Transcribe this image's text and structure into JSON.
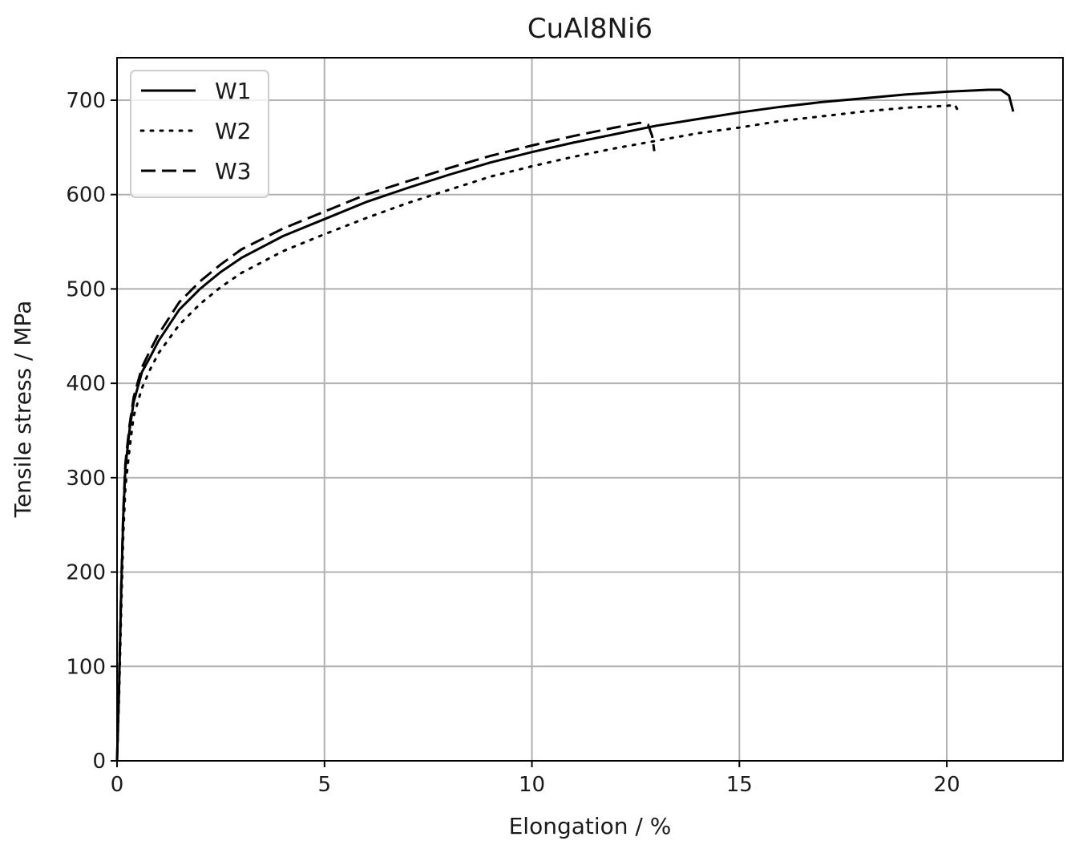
{
  "chart_data": {
    "type": "line",
    "title": "CuAl8Ni6",
    "xlabel": "Elongation / %",
    "ylabel": "Tensile stress / MPa",
    "xlim": [
      0,
      22.8
    ],
    "ylim": [
      0,
      745
    ],
    "xticks": [
      0,
      5,
      10,
      15,
      20
    ],
    "yticks": [
      0,
      100,
      200,
      300,
      400,
      500,
      600,
      700
    ],
    "grid": true,
    "legend_position": "top-left",
    "series": [
      {
        "name": "W1",
        "linestyle": "solid",
        "color": "#000000",
        "points": [
          [
            0,
            0
          ],
          [
            0.05,
            80
          ],
          [
            0.1,
            180
          ],
          [
            0.15,
            260
          ],
          [
            0.2,
            310
          ],
          [
            0.3,
            350
          ],
          [
            0.4,
            380
          ],
          [
            0.6,
            412
          ],
          [
            0.8,
            428
          ],
          [
            1.0,
            445
          ],
          [
            1.5,
            478
          ],
          [
            2.0,
            500
          ],
          [
            2.5,
            518
          ],
          [
            3.0,
            533
          ],
          [
            4.0,
            556
          ],
          [
            5.0,
            574
          ],
          [
            6.0,
            592
          ],
          [
            7.0,
            607
          ],
          [
            8.0,
            621
          ],
          [
            9.0,
            634
          ],
          [
            10.0,
            645
          ],
          [
            11.0,
            655
          ],
          [
            12.0,
            664
          ],
          [
            13.0,
            673
          ],
          [
            14.0,
            680
          ],
          [
            15.0,
            687
          ],
          [
            16.0,
            693
          ],
          [
            17.0,
            698
          ],
          [
            18.0,
            702
          ],
          [
            19.0,
            706
          ],
          [
            20.0,
            709
          ],
          [
            21.0,
            711
          ],
          [
            21.3,
            711
          ],
          [
            21.5,
            705
          ],
          [
            21.6,
            688
          ]
        ]
      },
      {
        "name": "W2",
        "linestyle": "dotted",
        "color": "#000000",
        "points": [
          [
            0,
            0
          ],
          [
            0.05,
            70
          ],
          [
            0.1,
            160
          ],
          [
            0.15,
            240
          ],
          [
            0.2,
            290
          ],
          [
            0.3,
            330
          ],
          [
            0.4,
            365
          ],
          [
            0.6,
            395
          ],
          [
            0.8,
            415
          ],
          [
            1.0,
            432
          ],
          [
            1.5,
            462
          ],
          [
            2.0,
            484
          ],
          [
            2.5,
            502
          ],
          [
            3.0,
            517
          ],
          [
            4.0,
            540
          ],
          [
            5.0,
            558
          ],
          [
            6.0,
            575
          ],
          [
            7.0,
            591
          ],
          [
            8.0,
            605
          ],
          [
            9.0,
            619
          ],
          [
            10.0,
            630
          ],
          [
            11.0,
            640
          ],
          [
            12.0,
            649
          ],
          [
            13.0,
            657
          ],
          [
            14.0,
            665
          ],
          [
            15.0,
            671
          ],
          [
            16.0,
            678
          ],
          [
            17.0,
            683
          ],
          [
            18.0,
            688
          ],
          [
            19.0,
            692
          ],
          [
            20.0,
            694
          ],
          [
            20.2,
            695
          ],
          [
            20.3,
            686
          ]
        ]
      },
      {
        "name": "W3",
        "linestyle": "dashed",
        "color": "#000000",
        "points": [
          [
            0,
            0
          ],
          [
            0.05,
            85
          ],
          [
            0.1,
            185
          ],
          [
            0.15,
            265
          ],
          [
            0.2,
            315
          ],
          [
            0.3,
            355
          ],
          [
            0.4,
            385
          ],
          [
            0.6,
            417
          ],
          [
            0.8,
            435
          ],
          [
            1.0,
            452
          ],
          [
            1.5,
            486
          ],
          [
            2.0,
            508
          ],
          [
            2.5,
            526
          ],
          [
            3.0,
            542
          ],
          [
            4.0,
            564
          ],
          [
            5.0,
            582
          ],
          [
            6.0,
            600
          ],
          [
            7.0,
            614
          ],
          [
            8.0,
            628
          ],
          [
            9.0,
            641
          ],
          [
            10.0,
            652
          ],
          [
            11.0,
            662
          ],
          [
            12.0,
            671
          ],
          [
            12.6,
            676
          ],
          [
            12.8,
            674
          ],
          [
            12.9,
            662
          ],
          [
            12.95,
            646
          ]
        ]
      }
    ]
  }
}
